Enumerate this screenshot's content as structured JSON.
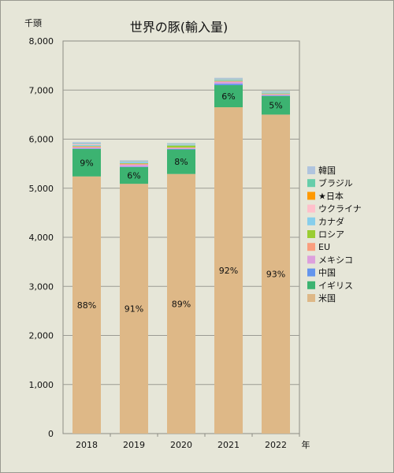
{
  "chart_data": {
    "type": "bar",
    "stacked": true,
    "title": "世界の豚(輸入量)",
    "y_unit": "千頭",
    "x_unit": "年",
    "ylim": [
      0,
      8000
    ],
    "y_ticks": [
      "0",
      "1,000",
      "2,000",
      "3,000",
      "4,000",
      "5,000",
      "6,000",
      "7,000",
      "8,000"
    ],
    "grid": true,
    "legend_position": "right",
    "categories": [
      "2018",
      "2019",
      "2020",
      "2021",
      "2022"
    ],
    "series": [
      {
        "name": "米国",
        "color": "#deb887",
        "values": [
          5240,
          5090,
          5290,
          6650,
          6500
        ],
        "labels": [
          "88%",
          "91%",
          "89%",
          "92%",
          "93%"
        ]
      },
      {
        "name": "イギリス",
        "color": "#3cb371",
        "values": [
          560,
          340,
          500,
          450,
          380
        ],
        "labels": [
          "9%",
          "6%",
          "8%",
          "6%",
          "5%"
        ]
      },
      {
        "name": "中国",
        "color": "#6495ed",
        "values": [
          10,
          10,
          10,
          30,
          10
        ],
        "labels": []
      },
      {
        "name": "メキシコ",
        "color": "#dda0dd",
        "values": [
          20,
          40,
          20,
          40,
          20
        ],
        "labels": []
      },
      {
        "name": "EU",
        "color": "#fa9e7e",
        "values": [
          20,
          20,
          10,
          10,
          10
        ],
        "labels": []
      },
      {
        "name": "ロシア",
        "color": "#9acd32",
        "values": [
          10,
          10,
          40,
          10,
          10
        ],
        "labels": []
      },
      {
        "name": "カナダ",
        "color": "#87ceeb",
        "values": [
          20,
          30,
          20,
          20,
          20
        ],
        "labels": []
      },
      {
        "name": "ウクライナ",
        "color": "#ffc0cb",
        "values": [
          20,
          10,
          10,
          10,
          10
        ],
        "labels": []
      },
      {
        "name": "★日本",
        "color": "#ff9900",
        "values": [
          0,
          0,
          0,
          0,
          0
        ],
        "labels": []
      },
      {
        "name": "ブラジル",
        "color": "#66cdaa",
        "values": [
          10,
          10,
          10,
          10,
          10
        ],
        "labels": []
      },
      {
        "name": "韓国",
        "color": "#b0c4de",
        "values": [
          30,
          10,
          10,
          20,
          10
        ],
        "labels": []
      }
    ]
  }
}
